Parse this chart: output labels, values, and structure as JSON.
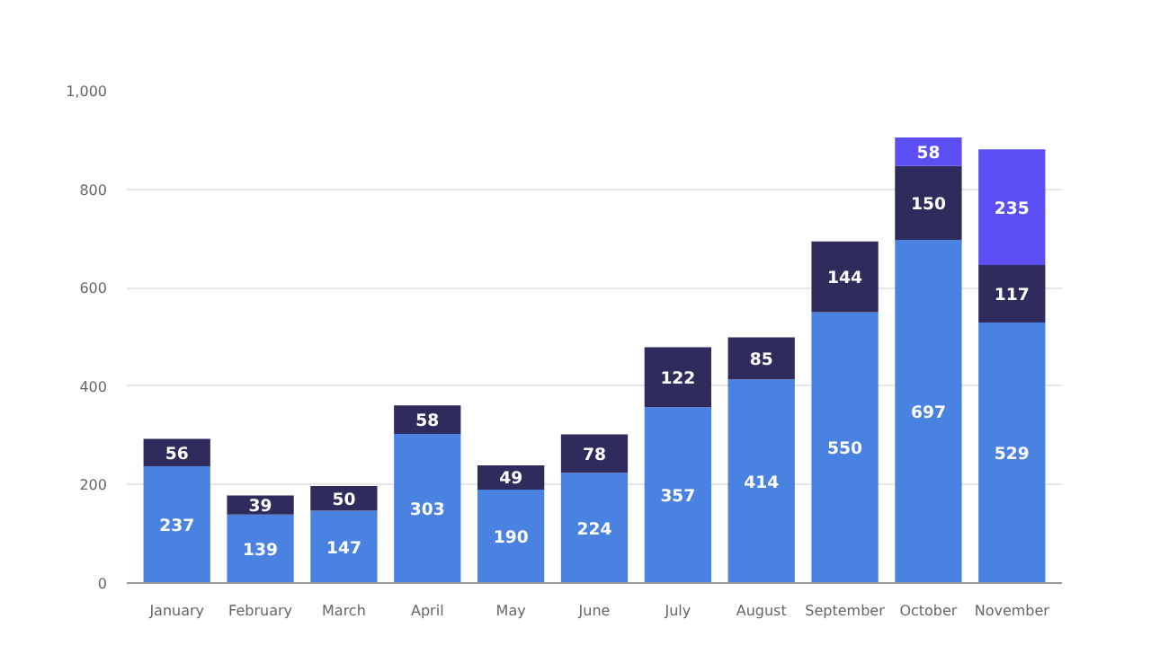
{
  "chart_data": {
    "type": "bar",
    "stacked": true,
    "data_labels": true,
    "grid": "y",
    "categories": [
      "January",
      "February",
      "March",
      "April",
      "May",
      "June",
      "July",
      "August",
      "September",
      "October",
      "November"
    ],
    "series": [
      {
        "color": "#4a82e2",
        "values": [
          237,
          139,
          147,
          303,
          190,
          224,
          357,
          414,
          550,
          697,
          529
        ]
      },
      {
        "color": "#2f2b5c",
        "values": [
          56,
          39,
          50,
          58,
          49,
          78,
          122,
          85,
          144,
          150,
          117
        ]
      },
      {
        "color": "#5b4ef2",
        "values": [
          null,
          null,
          null,
          null,
          null,
          null,
          null,
          null,
          null,
          58,
          235
        ]
      }
    ],
    "ylim": [
      0,
      1000
    ],
    "yticks": [
      0,
      200,
      400,
      600,
      800,
      {
        "value": 1000,
        "label": "1,000"
      }
    ]
  }
}
